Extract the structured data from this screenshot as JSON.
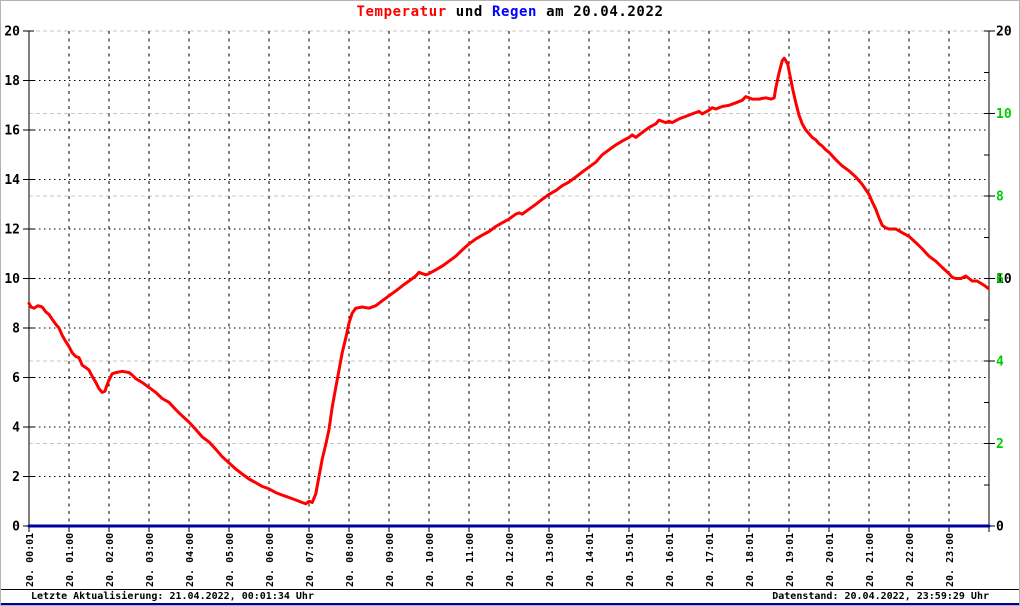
{
  "title": {
    "part_temperatur": "Temperatur",
    "part_und": " und ",
    "part_regen": "Regen",
    "part_date": " am 20.04.2022"
  },
  "colors": {
    "temperature": "#ff0000",
    "rain_line": "#0000a0",
    "rain_axis_label": "#00cc00",
    "title_rain": "#0000ff",
    "grid_black": "#000000",
    "grid_rain_gray": "#c8c8c8",
    "axis": "#000000",
    "bottom_strip": "#0000a0"
  },
  "status_bar": {
    "left": "Letzte Aktualisierung: 21.04.2022, 00:01:34 Uhr",
    "right": "Datenstand: 20.04.2022, 23:59:29 Uhr"
  },
  "chart_data": {
    "type": "line",
    "title": "Temperatur und Regen am 20.04.2022",
    "x_axis": {
      "range_hours": [
        0,
        24
      ],
      "labels": [
        "20. 00:01",
        "20. 01:00",
        "20. 02:00",
        "20. 03:00",
        "20. 04:00",
        "20. 05:00",
        "20. 06:00",
        "20. 07:00",
        "20. 08:00",
        "20. 09:00",
        "20. 10:00",
        "20. 11:00",
        "20. 12:00",
        "20. 13:00",
        "20. 14:01",
        "20. 15:01",
        "20. 16:01",
        "20. 17:01",
        "20. 18:01",
        "20. 19:01",
        "20. 20:01",
        "20. 21:00",
        "20. 22:00",
        "20. 23:00"
      ]
    },
    "y_axis_left": {
      "name": "Temperatur",
      "range": [
        0,
        20
      ],
      "label_values": [
        0,
        2,
        4,
        6,
        8,
        10,
        12,
        14,
        16,
        18,
        20
      ]
    },
    "y_axis_right_temp": {
      "name": "Temperatur (right repeats)",
      "label_values": [
        0,
        10,
        20
      ]
    },
    "y_axis_right_rain": {
      "name": "Regen",
      "range": [
        0,
        12
      ],
      "label_values": [
        2,
        4,
        6,
        8,
        10
      ],
      "minor_tick_values": [
        1,
        3,
        5,
        7,
        9,
        11
      ]
    },
    "gridlines": {
      "hours": [
        1,
        2,
        3,
        4,
        5,
        6,
        7,
        8,
        9,
        10,
        11,
        12,
        13,
        14,
        15,
        16,
        17,
        18,
        19,
        20,
        21,
        22,
        23
      ],
      "temperature_values": [
        2,
        4,
        6,
        8,
        10,
        12,
        14,
        16,
        18
      ],
      "rain_values": [
        2,
        4,
        8,
        10,
        12
      ]
    },
    "legend_position": "none",
    "series": [
      {
        "name": "Temperatur",
        "axis": "left",
        "color": "#ff0000",
        "points": [
          [
            0.0,
            9.0
          ],
          [
            0.05,
            8.85
          ],
          [
            0.13,
            8.8
          ],
          [
            0.22,
            8.9
          ],
          [
            0.33,
            8.85
          ],
          [
            0.42,
            8.65
          ],
          [
            0.5,
            8.55
          ],
          [
            0.58,
            8.35
          ],
          [
            0.67,
            8.15
          ],
          [
            0.75,
            8.0
          ],
          [
            0.83,
            7.7
          ],
          [
            0.92,
            7.45
          ],
          [
            1.0,
            7.25
          ],
          [
            1.08,
            7.0
          ],
          [
            1.17,
            6.85
          ],
          [
            1.25,
            6.8
          ],
          [
            1.33,
            6.5
          ],
          [
            1.42,
            6.4
          ],
          [
            1.5,
            6.3
          ],
          [
            1.58,
            6.05
          ],
          [
            1.67,
            5.8
          ],
          [
            1.75,
            5.55
          ],
          [
            1.83,
            5.4
          ],
          [
            1.9,
            5.45
          ],
          [
            1.95,
            5.7
          ],
          [
            2.0,
            5.9
          ],
          [
            2.08,
            6.15
          ],
          [
            2.17,
            6.2
          ],
          [
            2.33,
            6.25
          ],
          [
            2.5,
            6.2
          ],
          [
            2.58,
            6.1
          ],
          [
            2.67,
            5.95
          ],
          [
            2.83,
            5.8
          ],
          [
            3.0,
            5.6
          ],
          [
            3.17,
            5.4
          ],
          [
            3.33,
            5.15
          ],
          [
            3.5,
            5.0
          ],
          [
            3.67,
            4.7
          ],
          [
            3.83,
            4.45
          ],
          [
            4.0,
            4.2
          ],
          [
            4.17,
            3.9
          ],
          [
            4.33,
            3.6
          ],
          [
            4.5,
            3.4
          ],
          [
            4.67,
            3.1
          ],
          [
            4.83,
            2.8
          ],
          [
            5.0,
            2.55
          ],
          [
            5.17,
            2.3
          ],
          [
            5.33,
            2.1
          ],
          [
            5.5,
            1.9
          ],
          [
            5.67,
            1.75
          ],
          [
            5.83,
            1.6
          ],
          [
            6.0,
            1.5
          ],
          [
            6.17,
            1.35
          ],
          [
            6.33,
            1.25
          ],
          [
            6.5,
            1.15
          ],
          [
            6.67,
            1.05
          ],
          [
            6.83,
            0.95
          ],
          [
            6.92,
            0.9
          ],
          [
            7.0,
            1.0
          ],
          [
            7.08,
            0.95
          ],
          [
            7.17,
            1.3
          ],
          [
            7.25,
            2.0
          ],
          [
            7.33,
            2.7
          ],
          [
            7.42,
            3.3
          ],
          [
            7.5,
            3.9
          ],
          [
            7.58,
            4.8
          ],
          [
            7.67,
            5.6
          ],
          [
            7.75,
            6.3
          ],
          [
            7.83,
            7.0
          ],
          [
            7.92,
            7.6
          ],
          [
            8.0,
            8.2
          ],
          [
            8.08,
            8.6
          ],
          [
            8.17,
            8.8
          ],
          [
            8.33,
            8.85
          ],
          [
            8.5,
            8.8
          ],
          [
            8.67,
            8.9
          ],
          [
            8.83,
            9.1
          ],
          [
            9.0,
            9.3
          ],
          [
            9.17,
            9.5
          ],
          [
            9.33,
            9.7
          ],
          [
            9.5,
            9.9
          ],
          [
            9.67,
            10.1
          ],
          [
            9.75,
            10.25
          ],
          [
            9.83,
            10.2
          ],
          [
            9.92,
            10.15
          ],
          [
            10.0,
            10.2
          ],
          [
            10.17,
            10.35
          ],
          [
            10.33,
            10.5
          ],
          [
            10.5,
            10.7
          ],
          [
            10.67,
            10.9
          ],
          [
            10.83,
            11.15
          ],
          [
            11.0,
            11.4
          ],
          [
            11.17,
            11.6
          ],
          [
            11.33,
            11.75
          ],
          [
            11.5,
            11.9
          ],
          [
            11.67,
            12.1
          ],
          [
            11.83,
            12.25
          ],
          [
            12.0,
            12.4
          ],
          [
            12.17,
            12.6
          ],
          [
            12.25,
            12.65
          ],
          [
            12.33,
            12.6
          ],
          [
            12.5,
            12.8
          ],
          [
            12.67,
            13.0
          ],
          [
            12.83,
            13.2
          ],
          [
            13.0,
            13.4
          ],
          [
            13.17,
            13.55
          ],
          [
            13.33,
            13.75
          ],
          [
            13.5,
            13.9
          ],
          [
            13.67,
            14.1
          ],
          [
            13.83,
            14.3
          ],
          [
            14.0,
            14.5
          ],
          [
            14.17,
            14.7
          ],
          [
            14.33,
            15.0
          ],
          [
            14.5,
            15.2
          ],
          [
            14.67,
            15.4
          ],
          [
            14.83,
            15.55
          ],
          [
            15.0,
            15.7
          ],
          [
            15.08,
            15.8
          ],
          [
            15.17,
            15.7
          ],
          [
            15.33,
            15.9
          ],
          [
            15.5,
            16.1
          ],
          [
            15.67,
            16.25
          ],
          [
            15.75,
            16.4
          ],
          [
            15.92,
            16.3
          ],
          [
            16.0,
            16.35
          ],
          [
            16.08,
            16.3
          ],
          [
            16.25,
            16.45
          ],
          [
            16.42,
            16.55
          ],
          [
            16.58,
            16.65
          ],
          [
            16.75,
            16.75
          ],
          [
            16.83,
            16.65
          ],
          [
            17.0,
            16.8
          ],
          [
            17.08,
            16.9
          ],
          [
            17.17,
            16.85
          ],
          [
            17.33,
            16.95
          ],
          [
            17.5,
            17.0
          ],
          [
            17.67,
            17.1
          ],
          [
            17.83,
            17.2
          ],
          [
            17.92,
            17.35
          ],
          [
            18.0,
            17.3
          ],
          [
            18.08,
            17.25
          ],
          [
            18.25,
            17.25
          ],
          [
            18.42,
            17.3
          ],
          [
            18.55,
            17.25
          ],
          [
            18.63,
            17.3
          ],
          [
            18.67,
            17.7
          ],
          [
            18.75,
            18.3
          ],
          [
            18.83,
            18.8
          ],
          [
            18.88,
            18.9
          ],
          [
            18.92,
            18.8
          ],
          [
            18.97,
            18.65
          ],
          [
            19.0,
            18.4
          ],
          [
            19.05,
            18.0
          ],
          [
            19.1,
            17.6
          ],
          [
            19.17,
            17.1
          ],
          [
            19.25,
            16.6
          ],
          [
            19.33,
            16.25
          ],
          [
            19.42,
            16.0
          ],
          [
            19.5,
            15.85
          ],
          [
            19.58,
            15.7
          ],
          [
            19.67,
            15.6
          ],
          [
            19.75,
            15.45
          ],
          [
            19.83,
            15.35
          ],
          [
            19.92,
            15.2
          ],
          [
            20.0,
            15.1
          ],
          [
            20.17,
            14.8
          ],
          [
            20.33,
            14.55
          ],
          [
            20.5,
            14.35
          ],
          [
            20.67,
            14.1
          ],
          [
            20.83,
            13.8
          ],
          [
            21.0,
            13.4
          ],
          [
            21.08,
            13.1
          ],
          [
            21.17,
            12.8
          ],
          [
            21.25,
            12.45
          ],
          [
            21.33,
            12.15
          ],
          [
            21.42,
            12.05
          ],
          [
            21.5,
            12.0
          ],
          [
            21.67,
            12.0
          ],
          [
            21.83,
            11.85
          ],
          [
            22.0,
            11.7
          ],
          [
            22.17,
            11.45
          ],
          [
            22.33,
            11.2
          ],
          [
            22.5,
            10.9
          ],
          [
            22.67,
            10.7
          ],
          [
            22.83,
            10.45
          ],
          [
            23.0,
            10.2
          ],
          [
            23.08,
            10.05
          ],
          [
            23.17,
            10.0
          ],
          [
            23.3,
            10.0
          ],
          [
            23.42,
            10.1
          ],
          [
            23.5,
            10.0
          ],
          [
            23.58,
            9.9
          ],
          [
            23.7,
            9.9
          ],
          [
            23.8,
            9.8
          ],
          [
            23.9,
            9.7
          ],
          [
            23.98,
            9.6
          ]
        ]
      },
      {
        "name": "Regen",
        "axis": "right",
        "color": "#0000a0",
        "points": [
          [
            0.0,
            0.0
          ],
          [
            24.0,
            0.0
          ]
        ]
      }
    ]
  }
}
